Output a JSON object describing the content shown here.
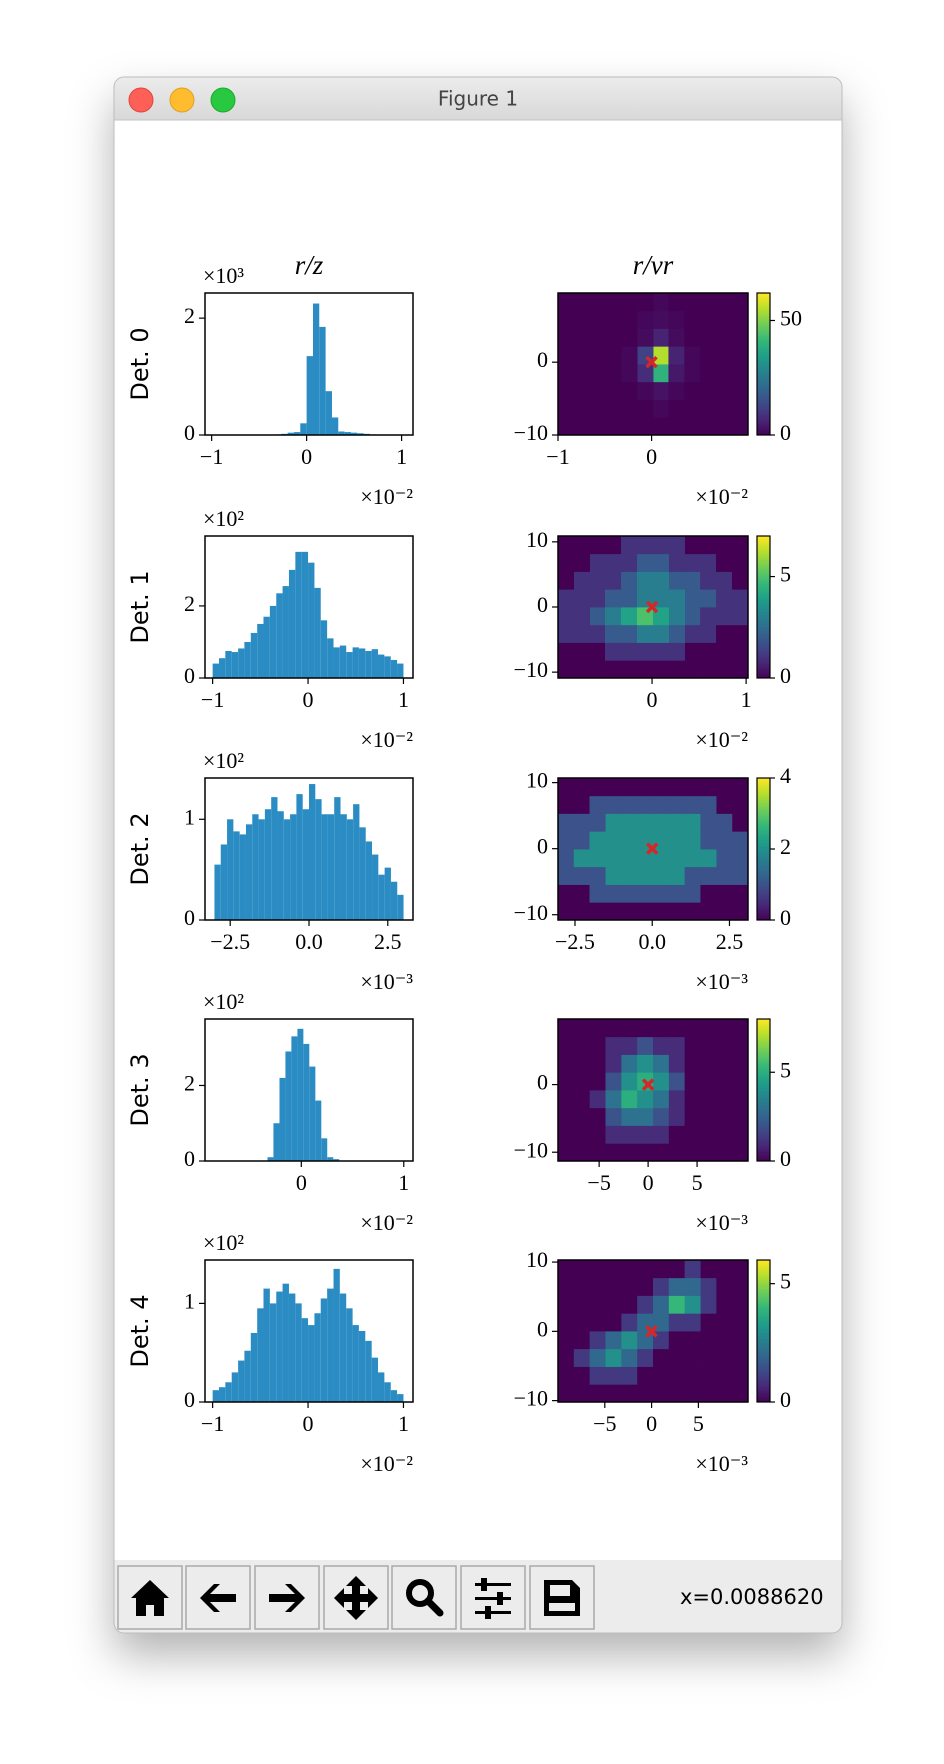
{
  "window": {
    "title": "Figure 1",
    "status": "x=0.0088620"
  },
  "chart_data": [
    {
      "type": "histogram",
      "title": "r/z",
      "ylabel": "Det. 0",
      "color": "#2b8cc4",
      "bins": [
        -1,
        -0.933,
        -0.867,
        -0.8,
        -0.733,
        -0.667,
        -0.6,
        -0.533,
        -0.467,
        -0.4,
        -0.333,
        -0.267,
        -0.2,
        -0.133,
        -0.067,
        0,
        0.067,
        0.133,
        0.2,
        0.267,
        0.333,
        0.4,
        0.467,
        0.533,
        0.6,
        0.667,
        0.733,
        0.8,
        0.867,
        0.933,
        1
      ],
      "values": [
        0,
        0,
        0,
        0,
        0,
        0,
        0,
        0,
        0,
        0,
        0.01,
        0.02,
        0.04,
        0.05,
        0.2,
        1.35,
        2.25,
        1.85,
        0.75,
        0.3,
        0.06,
        0.05,
        0.04,
        0.03,
        0.02,
        0.01,
        0,
        0,
        0,
        0
      ],
      "xlim": [
        -1.07,
        1.12
      ],
      "xticks": [
        {
          "value": -1,
          "label": "−1"
        },
        0,
        1
      ],
      "ylim": [
        0,
        2.43
      ],
      "yticks": [
        0,
        2
      ],
      "x_offset": "×10⁻²",
      "y_offset": "×10³"
    },
    {
      "type": "heatmap",
      "title": "r/vr",
      "colormap": "viridis",
      "xbins": [
        -1,
        -0.83,
        -0.66,
        -0.49,
        -0.32,
        -0.15,
        0.02,
        0.18,
        0.35,
        0.52,
        0.69,
        0.86,
        1.03
      ],
      "ybins": [
        -10,
        -7.56,
        -5.13,
        -2.69,
        -0.25,
        2.19,
        4.63,
        7.06,
        9.5
      ],
      "values": [
        [
          0,
          0,
          0,
          0,
          0,
          0,
          0,
          0,
          0,
          0,
          0,
          0
        ],
        [
          0,
          0,
          0,
          0,
          0,
          0,
          1,
          0,
          0,
          0,
          0,
          0
        ],
        [
          0,
          0,
          0,
          0,
          0,
          1,
          3,
          1,
          0,
          0,
          0,
          0
        ],
        [
          0,
          0,
          0,
          0,
          1,
          8,
          40,
          4,
          1,
          0,
          0,
          0
        ],
        [
          0,
          0,
          0,
          0,
          1,
          12,
          55,
          6,
          1,
          0,
          0,
          0
        ],
        [
          0,
          0,
          0,
          0,
          0,
          2,
          6,
          2,
          0,
          0,
          0,
          0
        ],
        [
          0,
          0,
          0,
          0,
          0,
          1,
          2,
          1,
          0,
          0,
          0,
          0
        ],
        [
          0,
          0,
          0,
          0,
          0,
          0,
          1,
          0,
          0,
          0,
          0,
          0
        ]
      ],
      "xlim": [
        -1,
        1.03
      ],
      "xticks": [
        {
          "value": -1,
          "label": "−1"
        },
        0
      ],
      "ylim": [
        -10,
        9.5
      ],
      "yticks": [
        {
          "value": -10,
          "label": "−10"
        },
        0
      ],
      "clim": [
        0,
        62
      ],
      "cticks": [
        0,
        50
      ],
      "x_offset": "×10⁻²",
      "points": {
        "x": [
          0
        ],
        "y": [
          0
        ],
        "color": "#d62728"
      }
    },
    {
      "type": "histogram",
      "ylabel": "Det. 1",
      "color": "#2b8cc4",
      "bins": [
        -1,
        -0.933,
        -0.867,
        -0.8,
        -0.733,
        -0.667,
        -0.6,
        -0.533,
        -0.467,
        -0.4,
        -0.333,
        -0.267,
        -0.2,
        -0.133,
        -0.067,
        0,
        0.067,
        0.133,
        0.2,
        0.267,
        0.333,
        0.4,
        0.467,
        0.533,
        0.6,
        0.667,
        0.733,
        0.8,
        0.867,
        0.933,
        1
      ],
      "values": [
        0.4,
        0.55,
        0.75,
        0.72,
        0.82,
        1.0,
        1.25,
        1.5,
        1.7,
        2.0,
        2.35,
        2.55,
        3.0,
        3.5,
        3.5,
        3.2,
        2.5,
        1.6,
        1.1,
        0.85,
        0.9,
        0.72,
        0.85,
        0.82,
        0.75,
        0.8,
        0.65,
        0.6,
        0.5,
        0.4
      ],
      "xlim": [
        -1.08,
        1.1
      ],
      "xticks": [
        {
          "value": -1,
          "label": "−1"
        },
        0,
        1
      ],
      "ylim": [
        0,
        3.94
      ],
      "yticks": [
        0,
        2
      ],
      "x_offset": "×10⁻²",
      "y_offset": "×10²"
    },
    {
      "type": "heatmap",
      "colormap": "viridis",
      "xbins": [
        -1,
        -0.83,
        -0.66,
        -0.5,
        -0.33,
        -0.16,
        0.01,
        0.18,
        0.35,
        0.51,
        0.68,
        0.85,
        1.02
      ],
      "ybins": [
        -10.9,
        -8.18,
        -5.45,
        -2.73,
        0,
        2.73,
        5.45,
        8.18,
        10.9
      ],
      "values": [
        [
          0,
          0,
          0,
          0,
          0,
          0,
          0,
          0,
          0,
          0,
          0,
          0
        ],
        [
          0,
          0,
          0,
          1,
          1,
          1,
          1,
          1,
          0,
          0,
          0,
          0
        ],
        [
          1,
          1,
          1,
          2,
          2,
          3,
          3,
          2,
          1,
          1,
          0,
          0
        ],
        [
          1,
          1,
          2,
          3,
          4,
          5,
          4,
          3,
          2,
          1,
          1,
          1
        ],
        [
          1,
          1,
          1,
          2,
          2,
          3,
          3,
          3,
          2,
          2,
          1,
          1
        ],
        [
          0,
          1,
          1,
          1,
          2,
          3,
          3,
          2,
          2,
          1,
          1,
          0
        ],
        [
          0,
          0,
          1,
          1,
          1,
          2,
          2,
          1,
          1,
          1,
          0,
          0
        ],
        [
          0,
          0,
          0,
          0,
          1,
          1,
          1,
          1,
          0,
          0,
          0,
          0
        ]
      ],
      "xlim": [
        -1,
        1.02
      ],
      "xticks": [
        0,
        1
      ],
      "ylim": [
        -10.9,
        10.9
      ],
      "yticks": [
        {
          "value": -10,
          "label": "−10"
        },
        0,
        10
      ],
      "clim": [
        0,
        7
      ],
      "cticks": [
        0,
        5
      ],
      "x_offset": "×10⁻²",
      "points": {
        "x": [
          0
        ],
        "y": [
          0
        ],
        "color": "#d62728"
      }
    },
    {
      "type": "histogram",
      "ylabel": "Det. 2",
      "color": "#2b8cc4",
      "bins": [
        -3,
        -2.8,
        -2.6,
        -2.4,
        -2.2,
        -2,
        -1.8,
        -1.6,
        -1.4,
        -1.2,
        -1,
        -0.8,
        -0.6,
        -0.4,
        -0.2,
        0,
        0.2,
        0.4,
        0.6,
        0.8,
        1,
        1.2,
        1.4,
        1.6,
        1.8,
        2,
        2.2,
        2.4,
        2.6,
        2.8,
        3
      ],
      "values": [
        0.55,
        0.75,
        1.0,
        0.88,
        0.85,
        0.95,
        1.05,
        1.0,
        1.1,
        1.22,
        1.08,
        1.0,
        1.05,
        1.25,
        1.1,
        1.35,
        1.2,
        1.05,
        1.05,
        1.22,
        1.05,
        1.0,
        1.15,
        0.92,
        0.78,
        0.65,
        0.45,
        0.52,
        0.38,
        0.25
      ],
      "xlim": [
        -3.3,
        3.3
      ],
      "xticks": [
        {
          "value": -2.5,
          "label": "−2.5"
        },
        {
          "value": 0,
          "label": "0.0"
        },
        2.5
      ],
      "ylim": [
        0,
        1.41
      ],
      "yticks": [
        0,
        1
      ],
      "x_offset": "×10⁻³",
      "y_offset": "×10²"
    },
    {
      "type": "heatmap",
      "colormap": "viridis",
      "xbins": [
        -3.05,
        -2.54,
        -2.03,
        -1.51,
        -1.0,
        -0.49,
        0.03,
        0.54,
        1.05,
        1.56,
        2.08,
        2.59,
        3.1
      ],
      "ybins": [
        -10.8,
        -8.11,
        -5.43,
        -2.74,
        -0.05,
        2.64,
        5.33,
        8.01,
        10.7
      ],
      "values": [
        [
          0,
          0,
          0,
          0,
          0,
          0,
          0,
          0,
          0,
          0,
          0,
          0
        ],
        [
          0,
          0,
          1,
          1,
          1,
          1,
          1,
          1,
          1,
          0,
          0,
          0
        ],
        [
          1,
          1,
          1,
          2,
          2,
          2,
          2,
          2,
          1,
          1,
          1,
          1
        ],
        [
          1,
          2,
          2,
          2,
          2,
          2,
          2,
          2,
          2,
          2,
          1,
          1
        ],
        [
          1,
          1,
          2,
          2,
          2,
          2,
          2,
          2,
          2,
          1,
          1,
          1
        ],
        [
          1,
          1,
          1,
          2,
          2,
          2,
          2,
          2,
          2,
          1,
          1,
          0
        ],
        [
          0,
          0,
          1,
          1,
          1,
          1,
          1,
          1,
          1,
          1,
          0,
          0
        ],
        [
          0,
          0,
          0,
          0,
          0,
          0,
          0,
          0,
          0,
          0,
          0,
          0
        ]
      ],
      "xlim": [
        -3.05,
        3.1
      ],
      "xticks": [
        {
          "value": -2.5,
          "label": "−2.5"
        },
        {
          "value": 0,
          "label": "0.0"
        },
        2.5
      ],
      "ylim": [
        -10.8,
        10.7
      ],
      "yticks": [
        {
          "value": -10,
          "label": "−10"
        },
        0,
        10
      ],
      "clim": [
        0,
        4
      ],
      "cticks": [
        0,
        2,
        4
      ],
      "x_offset": "×10⁻³",
      "points": {
        "x": [
          0
        ],
        "y": [
          0
        ],
        "color": "#d62728"
      }
    },
    {
      "type": "histogram",
      "ylabel": "Det. 3",
      "color": "#2b8cc4",
      "bins": [
        -0.33,
        -0.272,
        -0.213,
        -0.155,
        -0.097,
        -0.038,
        0.02,
        0.078,
        0.137,
        0.195,
        0.253,
        0.312,
        0.37
      ],
      "values": [
        0.1,
        1.0,
        2.2,
        2.9,
        3.3,
        3.5,
        3.1,
        2.5,
        1.6,
        0.6,
        0.1,
        0.05
      ],
      "xlim": [
        -0.94,
        1.09
      ],
      "xticks": [
        0,
        1
      ],
      "ylim": [
        0,
        3.76
      ],
      "yticks": [
        0,
        2
      ],
      "x_offset": "×10⁻²",
      "y_offset": "×10²"
    },
    {
      "type": "heatmap",
      "colormap": "viridis",
      "xbins": [
        -9.2,
        -7.58,
        -5.97,
        -4.35,
        -2.73,
        -1.12,
        0.5,
        2.12,
        3.73,
        5.35,
        6.97,
        8.58,
        10.2
      ],
      "ybins": [
        -11.3,
        -8.68,
        -6.05,
        -3.43,
        -0.8,
        1.83,
        4.45,
        7.08,
        9.7
      ],
      "values": [
        [
          0,
          0,
          0,
          0,
          0,
          0,
          0,
          0,
          0,
          0,
          0,
          0
        ],
        [
          0,
          0,
          0,
          1,
          1,
          1,
          1,
          0,
          0,
          0,
          0,
          0
        ],
        [
          0,
          0,
          0,
          2,
          3,
          3,
          2,
          1,
          0,
          0,
          0,
          0
        ],
        [
          0,
          0,
          1,
          3,
          5,
          4,
          3,
          1,
          0,
          0,
          0,
          0
        ],
        [
          0,
          0,
          0,
          2,
          4,
          5,
          4,
          2,
          0,
          0,
          0,
          0
        ],
        [
          0,
          0,
          0,
          1,
          3,
          4,
          3,
          1,
          0,
          0,
          0,
          0
        ],
        [
          0,
          0,
          0,
          1,
          1,
          2,
          1,
          1,
          0,
          0,
          0,
          0
        ],
        [
          0,
          0,
          0,
          0,
          0,
          0,
          0,
          0,
          0,
          0,
          0,
          0
        ]
      ],
      "xlim": [
        -9.2,
        10.2
      ],
      "xticks": [
        {
          "value": -5,
          "label": "−5"
        },
        0,
        5
      ],
      "ylim": [
        -11.3,
        9.7
      ],
      "yticks": [
        {
          "value": -10,
          "label": "−10"
        },
        0
      ],
      "clim": [
        0,
        8
      ],
      "cticks": [
        0,
        5
      ],
      "x_offset": "×10⁻³",
      "points": {
        "x": [
          0
        ],
        "y": [
          0
        ],
        "color": "#d62728"
      }
    },
    {
      "type": "histogram",
      "ylabel": "Det. 4",
      "color": "#2b8cc4",
      "bins": [
        -1,
        -0.933,
        -0.867,
        -0.8,
        -0.733,
        -0.667,
        -0.6,
        -0.533,
        -0.467,
        -0.4,
        -0.333,
        -0.267,
        -0.2,
        -0.133,
        -0.067,
        0,
        0.067,
        0.133,
        0.2,
        0.267,
        0.333,
        0.4,
        0.467,
        0.533,
        0.6,
        0.667,
        0.733,
        0.8,
        0.867,
        0.933,
        1
      ],
      "values": [
        0.12,
        0.15,
        0.2,
        0.3,
        0.42,
        0.52,
        0.7,
        0.95,
        1.15,
        1.0,
        1.12,
        1.2,
        1.1,
        1.0,
        0.85,
        0.78,
        0.9,
        1.05,
        1.15,
        1.35,
        1.1,
        0.95,
        0.78,
        0.72,
        0.62,
        0.45,
        0.3,
        0.2,
        0.12,
        0.08
      ],
      "xlim": [
        -1.08,
        1.1
      ],
      "xticks": [
        {
          "value": -1,
          "label": "−1"
        },
        0,
        1
      ],
      "ylim": [
        0,
        1.44
      ],
      "yticks": [
        0,
        1
      ],
      "x_offset": "×10⁻²",
      "y_offset": "×10²"
    },
    {
      "type": "heatmap",
      "colormap": "viridis",
      "xbins": [
        -10,
        -8.31,
        -6.62,
        -4.93,
        -3.23,
        -1.54,
        0.15,
        1.84,
        3.53,
        5.23,
        6.92,
        8.61,
        10.3
      ],
      "ybins": [
        -10.2,
        -7.64,
        -5.08,
        -2.51,
        0.05,
        2.61,
        5.18,
        7.74,
        10.3
      ],
      "values": [
        [
          0,
          0,
          0,
          0,
          0,
          0,
          0,
          0,
          0,
          0,
          0,
          0
        ],
        [
          0,
          0,
          1,
          1,
          1,
          0,
          0,
          0,
          0,
          0,
          0,
          0
        ],
        [
          0,
          1,
          2,
          3,
          2,
          1,
          0,
          0,
          0,
          0,
          0,
          0
        ],
        [
          0,
          0,
          1,
          2,
          3,
          2,
          1,
          0,
          0,
          0,
          0,
          0
        ],
        [
          0,
          0,
          0,
          0,
          1,
          2,
          2,
          1,
          1,
          0,
          0,
          0
        ],
        [
          0,
          0,
          0,
          0,
          0,
          1,
          2,
          4,
          3,
          1,
          0,
          0
        ],
        [
          0,
          0,
          0,
          0,
          0,
          0,
          1,
          2,
          2,
          1,
          0,
          0
        ],
        [
          0,
          0,
          0,
          0,
          0,
          0,
          0,
          0,
          1,
          0,
          0,
          0
        ]
      ],
      "xlim": [
        -10,
        10.3
      ],
      "xticks": [
        {
          "value": -5,
          "label": "−5"
        },
        0,
        5
      ],
      "ylim": [
        -10.2,
        10.3
      ],
      "yticks": [
        {
          "value": -10,
          "label": "−10"
        },
        0,
        10
      ],
      "clim": [
        0,
        6
      ],
      "cticks": [
        0,
        5
      ],
      "x_offset": "×10⁻³",
      "points": {
        "x": [
          0
        ],
        "y": [
          0
        ],
        "color": "#d62728"
      }
    }
  ]
}
